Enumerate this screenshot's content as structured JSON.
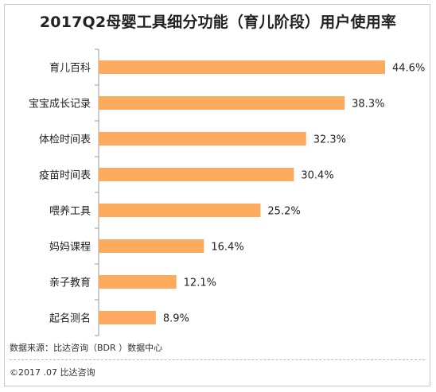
{
  "title": "2017Q2母婴工具细分功能（育儿阶段）用户使用率",
  "source": "数据来源：比达咨询（BDR ）数据中心",
  "copyright": "©2017 .07  比达咨询",
  "colors": {
    "bar": "#FBAA5E",
    "axis": "#999999",
    "text": "#222222"
  },
  "chart_data": {
    "type": "bar",
    "orientation": "horizontal",
    "categories": [
      "育儿百科",
      "宝宝成长记录",
      "体检时间表",
      "疫苗时间表",
      "喂养工具",
      "妈妈课程",
      "亲子教育",
      "起名测名"
    ],
    "values": [
      44.6,
      38.3,
      32.3,
      30.4,
      25.2,
      16.4,
      12.1,
      8.9
    ],
    "value_labels": [
      "44.6%",
      "38.3%",
      "32.3%",
      "30.4%",
      "25.2%",
      "16.4%",
      "12.1%",
      "8.9%"
    ],
    "xlim": [
      0,
      50
    ],
    "grid": false,
    "legend": "none"
  }
}
